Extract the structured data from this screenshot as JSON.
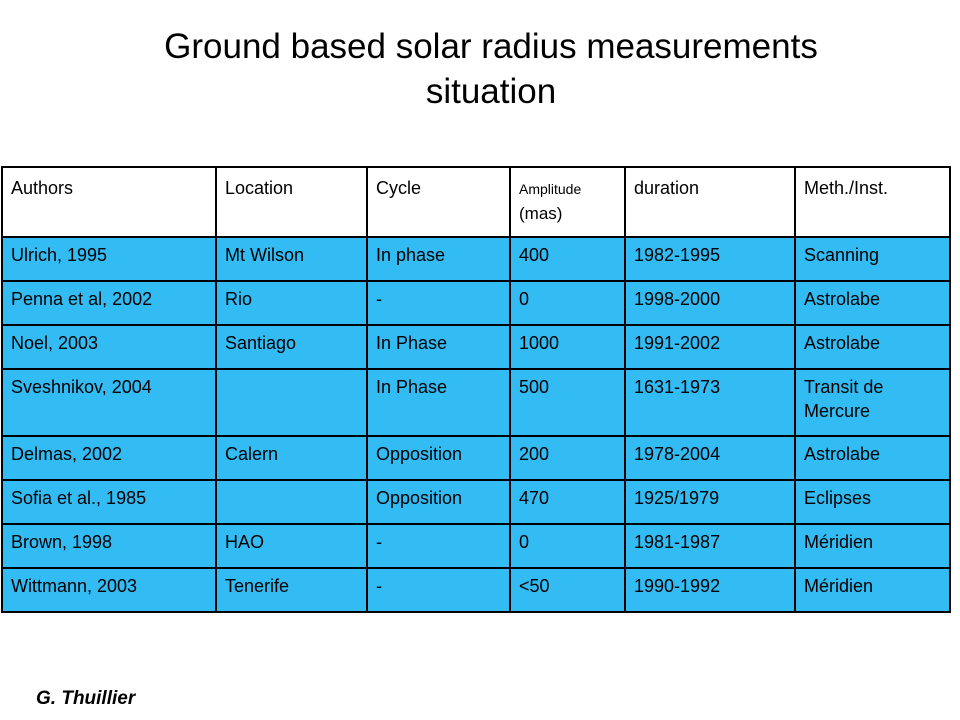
{
  "title": {
    "line1": "Ground based solar radius measurements",
    "line2": "situation"
  },
  "table": {
    "headers": {
      "authors": "Authors",
      "location": "Location",
      "cycle": "Cycle",
      "amplitude_label": "Amplitude",
      "amplitude_unit": "(mas)",
      "duration": "duration",
      "method": "Meth./Inst."
    },
    "rows": [
      {
        "authors": "Ulrich, 1995",
        "location": "Mt Wilson",
        "cycle": "In phase",
        "amplitude": "400",
        "duration": "1982-1995",
        "method": "Scanning"
      },
      {
        "authors": "Penna et al, 2002",
        "location": "Rio",
        "cycle": "-",
        "amplitude": "0",
        "duration": "1998-2000",
        "method": "Astrolabe"
      },
      {
        "authors": "Noel, 2003",
        "location": "Santiago",
        "cycle": "In Phase",
        "amplitude": "1000",
        "duration": "1991-2002",
        "method": "Astrolabe"
      },
      {
        "authors": "Sveshnikov, 2004",
        "location": "",
        "cycle": "In Phase",
        "amplitude": "500",
        "duration": "1631-1973",
        "method": "Transit de Mercure"
      },
      {
        "authors": "Delmas, 2002",
        "location": "Calern",
        "cycle": "Opposition",
        "amplitude": "200",
        "duration": "1978-2004",
        "method": "Astrolabe"
      },
      {
        "authors": "Sofia et al., 1985",
        "location": "",
        "cycle": "Opposition",
        "amplitude": "470",
        "duration": "1925/1979",
        "method": "Eclipses"
      },
      {
        "authors": "Brown, 1998",
        "location": "HAO",
        "cycle": "-",
        "amplitude": "0",
        "duration": "1981-1987",
        "method": "Méridien"
      },
      {
        "authors": "Wittmann, 2003",
        "location": "Tenerife",
        "cycle": "-",
        "amplitude": "<50",
        "duration": "1990-1992",
        "method": "Méridien"
      }
    ]
  },
  "credit": "G. Thuillier",
  "colors": {
    "row_background": "#33bbf3",
    "header_background": "#ffffff",
    "border": "#000000"
  }
}
